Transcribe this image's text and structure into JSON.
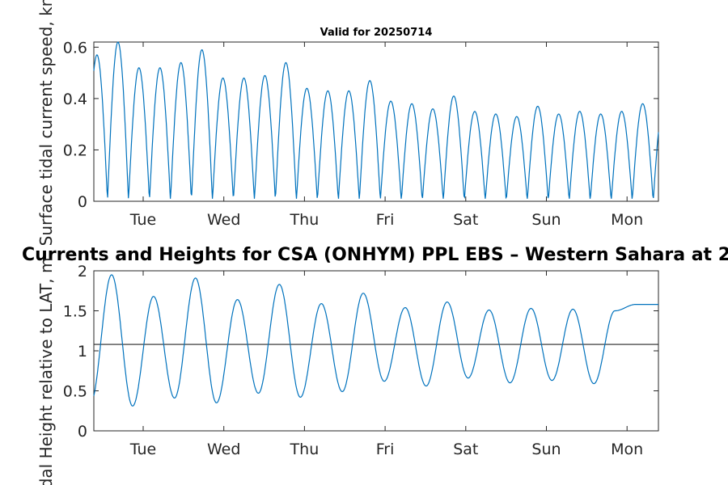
{
  "chart_data": [
    {
      "type": "line",
      "title": "Valid for 20250714",
      "ylabel": "Surface tidal current speed, kn",
      "xlabel": "",
      "x_ticks": [
        "Tue",
        "Wed",
        "Thu",
        "Fri",
        "Sat",
        "Sun",
        "Mon"
      ],
      "y_ticks": [
        "0",
        "0.2",
        "0.4",
        "0.6"
      ],
      "ylim": [
        0,
        0.62
      ],
      "xlim": [
        0,
        7.0
      ],
      "grid": false,
      "series": [
        {
          "values_note": "peak current speeds of each flood/ebb cycle",
          "peaks": [
            0.57,
            0.62,
            0.52,
            0.52,
            0.54,
            0.59,
            0.48,
            0.48,
            0.49,
            0.54,
            0.44,
            0.43,
            0.43,
            0.47,
            0.39,
            0.38,
            0.36,
            0.41,
            0.35,
            0.34,
            0.33,
            0.37,
            0.34,
            0.35,
            0.34,
            0.35,
            0.38
          ]
        }
      ]
    },
    {
      "type": "line",
      "title": "Currents and Heights for CSA (ONHYM) PPL EBS  – Western Sahara at 2",
      "ylabel": "Tidal Height relative to LAT, m",
      "xlabel": "",
      "x_ticks": [
        "Tue",
        "Wed",
        "Thu",
        "Fri",
        "Sat",
        "Sun",
        "Mon"
      ],
      "y_ticks": [
        "0",
        "0.5",
        "1",
        "1.5",
        "2"
      ],
      "ylim": [
        0,
        2
      ],
      "xlim": [
        0,
        7.0
      ],
      "grid": false,
      "reference_line": 1.08,
      "series": [
        {
          "highs": [
            1.95,
            1.68,
            1.91,
            1.64,
            1.83,
            1.59,
            1.72,
            1.54,
            1.61,
            1.51,
            1.53,
            1.52,
            1.5,
            1.58
          ],
          "lows": [
            0.31,
            0.41,
            0.35,
            0.47,
            0.42,
            0.49,
            0.62,
            0.56,
            0.66,
            0.6,
            0.63,
            0.59
          ]
        }
      ]
    }
  ],
  "colors": {
    "series": "#0072bd",
    "axis": "#262626",
    "reference": "#262626"
  }
}
